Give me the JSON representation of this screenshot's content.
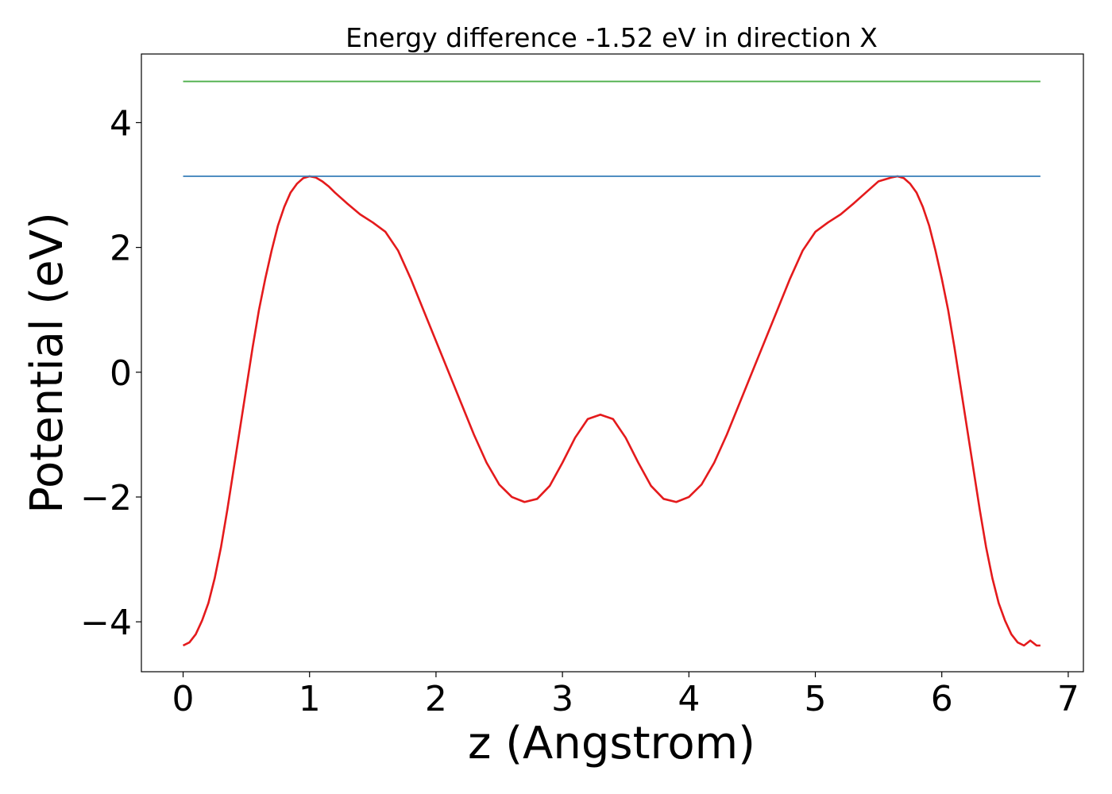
{
  "chart_data": {
    "type": "line",
    "title": "Energy difference -1.52 eV in direction X",
    "xlabel": "z (Angstrom)",
    "ylabel": "Potential (eV)",
    "xlim": [
      -0.33,
      7.12
    ],
    "ylim": [
      -4.8,
      5.1
    ],
    "grid": false,
    "x_ticks": [
      0,
      1,
      2,
      3,
      4,
      5,
      6,
      7
    ],
    "x_tick_labels": [
      "0",
      "1",
      "2",
      "3",
      "4",
      "5",
      "6",
      "7"
    ],
    "y_ticks": [
      -4,
      -2,
      0,
      2,
      4
    ],
    "y_tick_labels": [
      "−4",
      "−2",
      "0",
      "2",
      "4"
    ],
    "series": [
      {
        "color": "#e41a1c",
        "x": [
          0,
          0.05,
          0.1,
          0.15,
          0.2,
          0.25,
          0.3,
          0.35,
          0.4,
          0.45,
          0.5,
          0.55,
          0.6,
          0.65,
          0.7,
          0.75,
          0.8,
          0.85,
          0.9,
          0.95,
          1.0,
          1.05,
          1.1,
          1.15,
          1.2,
          1.3,
          1.4,
          1.5,
          1.6,
          1.7,
          1.8,
          1.9,
          2.0,
          2.1,
          2.2,
          2.3,
          2.4,
          2.5,
          2.6,
          2.7,
          2.8,
          2.9,
          3.0,
          3.1,
          3.2,
          3.3,
          3.4,
          3.5,
          3.6,
          3.7,
          3.8,
          3.9,
          4.0,
          4.1,
          4.2,
          4.3,
          4.4,
          4.5,
          4.6,
          4.7,
          4.8,
          4.9,
          5.0,
          5.1,
          5.2,
          5.3,
          5.4,
          5.5,
          5.6,
          5.65,
          5.7,
          5.75,
          5.8,
          5.85,
          5.9,
          5.95,
          6.0,
          6.05,
          6.1,
          6.15,
          6.2,
          6.25,
          6.3,
          6.35,
          6.4,
          6.45,
          6.5,
          6.55,
          6.6,
          6.65,
          6.7,
          6.75,
          6.78
        ],
        "y": [
          -4.38,
          -4.33,
          -4.2,
          -3.98,
          -3.7,
          -3.3,
          -2.8,
          -2.2,
          -1.55,
          -0.9,
          -0.25,
          0.4,
          1.0,
          1.5,
          1.95,
          2.35,
          2.65,
          2.88,
          3.02,
          3.11,
          3.14,
          3.12,
          3.06,
          2.98,
          2.88,
          2.7,
          2.53,
          2.4,
          2.25,
          1.95,
          1.5,
          1.0,
          0.5,
          0.0,
          -0.5,
          -1.0,
          -1.45,
          -1.8,
          -2.0,
          -2.08,
          -2.03,
          -1.82,
          -1.45,
          -1.05,
          -0.75,
          -0.68,
          -0.75,
          -1.05,
          -1.45,
          -1.82,
          -2.03,
          -2.08,
          -2.0,
          -1.8,
          -1.45,
          -1.0,
          -0.5,
          0.0,
          0.5,
          1.0,
          1.5,
          1.95,
          2.25,
          2.4,
          2.53,
          2.7,
          2.88,
          3.06,
          3.12,
          3.14,
          3.11,
          3.02,
          2.88,
          2.65,
          2.35,
          1.95,
          1.5,
          1.0,
          0.4,
          -0.25,
          -0.9,
          -1.55,
          -2.2,
          -2.8,
          -3.3,
          -3.7,
          -3.98,
          -4.2,
          -4.33,
          -4.38,
          -4.3,
          -4.38,
          -4.38
        ]
      },
      {
        "color": "#377eb8",
        "x": [
          0,
          6.78
        ],
        "y": [
          3.14,
          3.14
        ]
      },
      {
        "color": "#4daf4a",
        "x": [
          0,
          6.78
        ],
        "y": [
          4.66,
          4.66
        ]
      }
    ]
  }
}
